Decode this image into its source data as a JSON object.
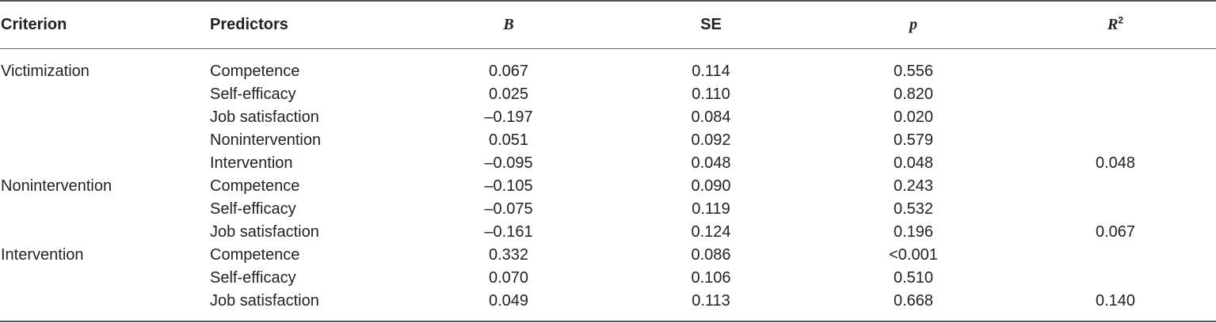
{
  "table": {
    "headers": {
      "criterion": "Criterion",
      "predictors": "Predictors",
      "b": "B",
      "se": "SE",
      "p": "p",
      "r2_base": "R",
      "r2_sup": "2"
    },
    "rows": [
      {
        "criterion": "Victimization",
        "predictor": "Competence",
        "b": "0.067",
        "se": "0.114",
        "p": "0.556",
        "r2": ""
      },
      {
        "criterion": "",
        "predictor": "Self-efficacy",
        "b": "0.025",
        "se": "0.110",
        "p": "0.820",
        "r2": ""
      },
      {
        "criterion": "",
        "predictor": "Job satisfaction",
        "b": "–0.197",
        "se": "0.084",
        "p": "0.020",
        "r2": ""
      },
      {
        "criterion": "",
        "predictor": "Nonintervention",
        "b": "0.051",
        "se": "0.092",
        "p": "0.579",
        "r2": ""
      },
      {
        "criterion": "",
        "predictor": "Intervention",
        "b": "–0.095",
        "se": "0.048",
        "p": "0.048",
        "r2": "0.048"
      },
      {
        "criterion": "Nonintervention",
        "predictor": "Competence",
        "b": "–0.105",
        "se": "0.090",
        "p": "0.243",
        "r2": ""
      },
      {
        "criterion": "",
        "predictor": "Self-efficacy",
        "b": "–0.075",
        "se": "0.119",
        "p": "0.532",
        "r2": ""
      },
      {
        "criterion": "",
        "predictor": "Job satisfaction",
        "b": "–0.161",
        "se": "0.124",
        "p": "0.196",
        "r2": "0.067"
      },
      {
        "criterion": "Intervention",
        "predictor": "Competence",
        "b": "0.332",
        "se": "0.086",
        "p": "<0.001",
        "r2": ""
      },
      {
        "criterion": "",
        "predictor": "Self-efficacy",
        "b": "0.070",
        "se": "0.106",
        "p": "0.510",
        "r2": ""
      },
      {
        "criterion": "",
        "predictor": "Job satisfaction",
        "b": "0.049",
        "se": "0.113",
        "p": "0.668",
        "r2": "0.140"
      }
    ]
  }
}
